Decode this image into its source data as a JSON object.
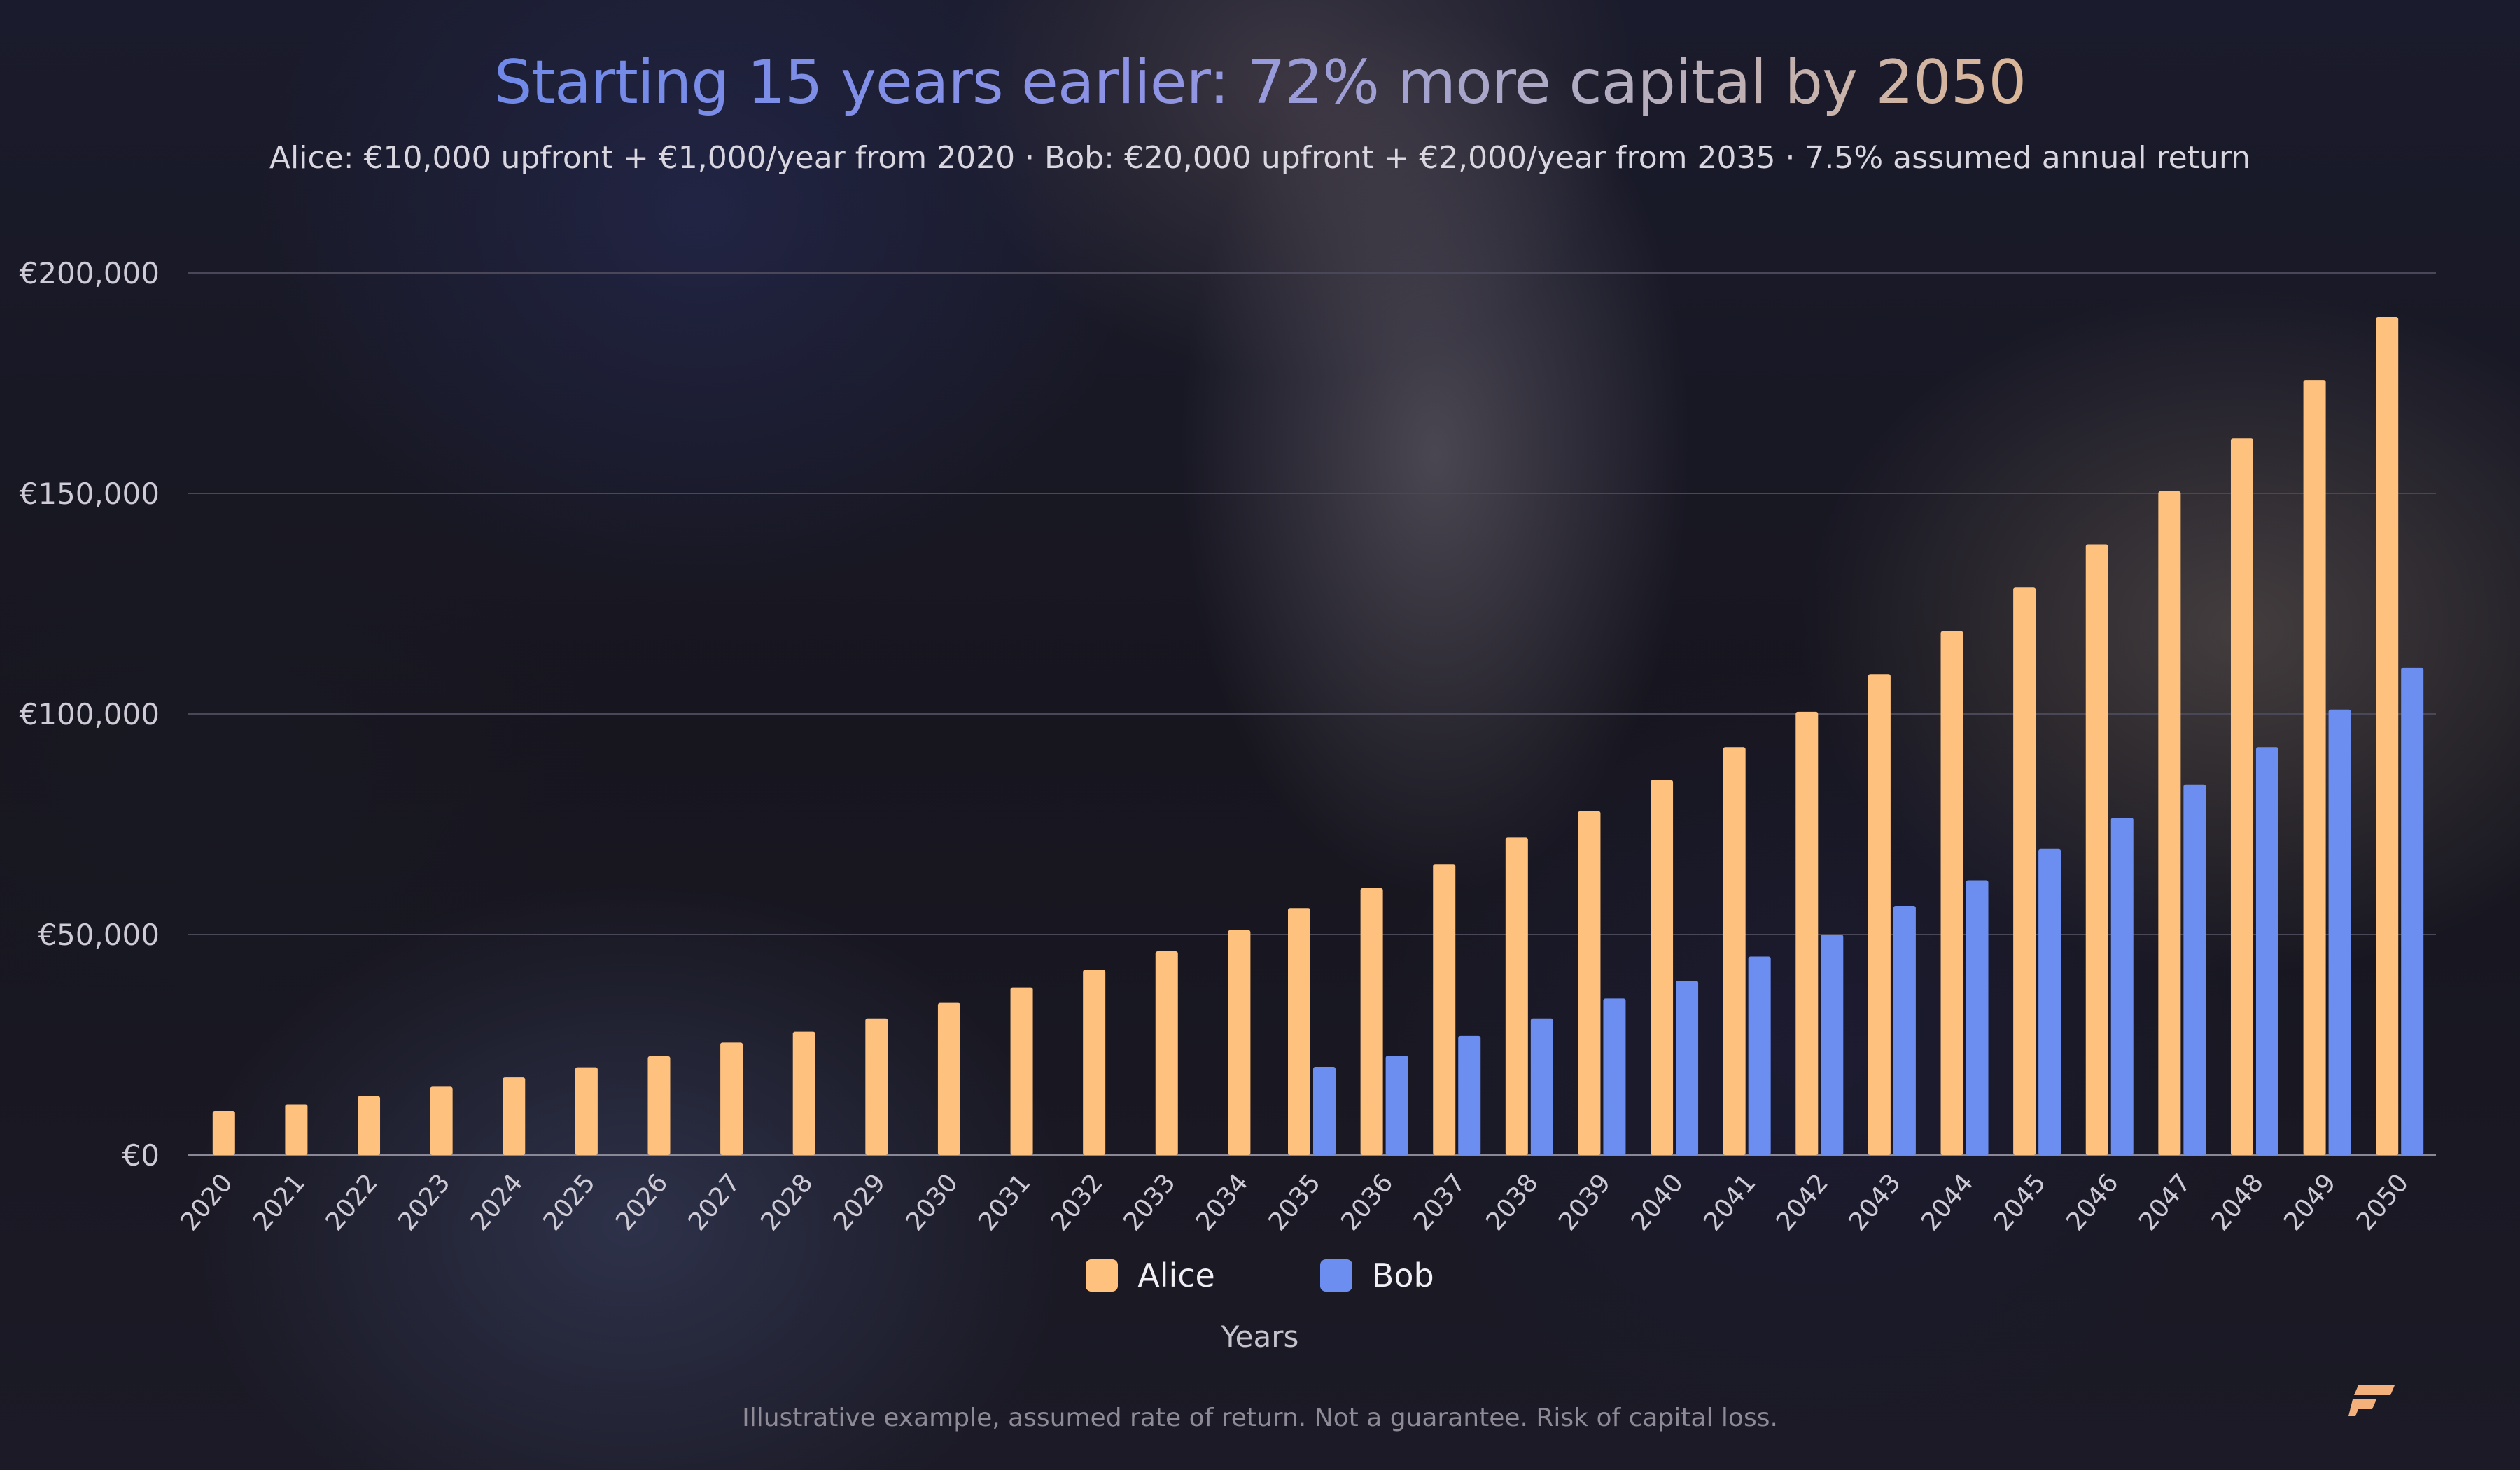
{
  "title": "Starting 15 years earlier: 72% more capital by 2050",
  "subtitle": "Alice: €10,000 upfront + €1,000/year from 2020 · Bob: €20,000 upfront + €2,000/year from 2035 · 7.5% assumed annual return",
  "footnote": "Illustrative example, assumed rate of return. Not a guarantee. Risk of capital loss.",
  "colors": {
    "alice": "#ffc27e",
    "bob": "#6b8ef0",
    "grid": "#4a4858",
    "axis_text": "#cfcbd6",
    "logo": "#f4b07a"
  },
  "icons": {
    "logo": "brand-logo-icon"
  },
  "chart_data": {
    "type": "bar",
    "title": "Starting 15 years earlier: 72% more capital by 2050",
    "xlabel": "Years",
    "ylabel": "",
    "ylim": [
      0,
      200000
    ],
    "yticks": [
      0,
      50000,
      100000,
      150000,
      200000
    ],
    "ytick_labels": [
      "€0",
      "€50,000",
      "€100,000",
      "€150,000",
      "€200,000"
    ],
    "grid": true,
    "legend_position": "bottom",
    "categories": [
      "2020",
      "2021",
      "2022",
      "2023",
      "2024",
      "2025",
      "2026",
      "2027",
      "2028",
      "2029",
      "2030",
      "2031",
      "2032",
      "2033",
      "2034",
      "2035",
      "2036",
      "2037",
      "2038",
      "2039",
      "2040",
      "2041",
      "2042",
      "2043",
      "2044",
      "2045",
      "2046",
      "2047",
      "2048",
      "2049",
      "2050"
    ],
    "series": [
      {
        "name": "Alice",
        "values": [
          10000,
          11500,
          13400,
          15500,
          17600,
          19900,
          22400,
          25500,
          28000,
          31000,
          34500,
          38000,
          42000,
          46200,
          51000,
          56000,
          60500,
          66000,
          72000,
          78000,
          85000,
          92500,
          100500,
          109000,
          118800,
          128700,
          138500,
          150500,
          162500,
          175700,
          190000
        ]
      },
      {
        "name": "Bob",
        "values": [
          0,
          0,
          0,
          0,
          0,
          0,
          0,
          0,
          0,
          0,
          0,
          0,
          0,
          0,
          0,
          20000,
          22500,
          27000,
          31000,
          35500,
          39500,
          45000,
          50000,
          56500,
          62300,
          69400,
          76500,
          84000,
          92500,
          101000,
          110500
        ]
      }
    ]
  }
}
